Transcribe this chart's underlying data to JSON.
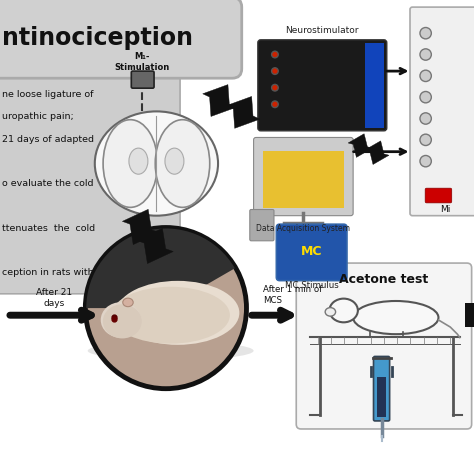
{
  "background_color": "#ffffff",
  "title_text": "ntinociception",
  "title_box_color": "#d0d0d0",
  "title_box_edge": "#aaaaaa",
  "left_box_color": "#c8c8c8",
  "left_box_edge": "#999999",
  "left_text_lines": [
    "ne loose ligature of",
    "uropathic pain;",
    "21 days of adapted",
    "",
    "o evaluate the cold",
    "",
    "ttenuates  the  cold",
    "",
    "ception in rats with"
  ],
  "m1_label": "M₁-\nStimulation",
  "neurostim_label": "Neurostimulator",
  "das_label": "Data Acquisition System",
  "mc_stimulus_label": "MC Stimulus",
  "mi_label": "Mi",
  "after21_label": "After 21\ndays",
  "after1min_label": "After 1 min of\nMCS",
  "acetone_label": "Acetone test",
  "arrow_color": "#111111",
  "lightning_color": "#111111",
  "rat_circle_color": "#111111",
  "syringe_blue": "#4499cc",
  "syringe_dark": "#223355"
}
